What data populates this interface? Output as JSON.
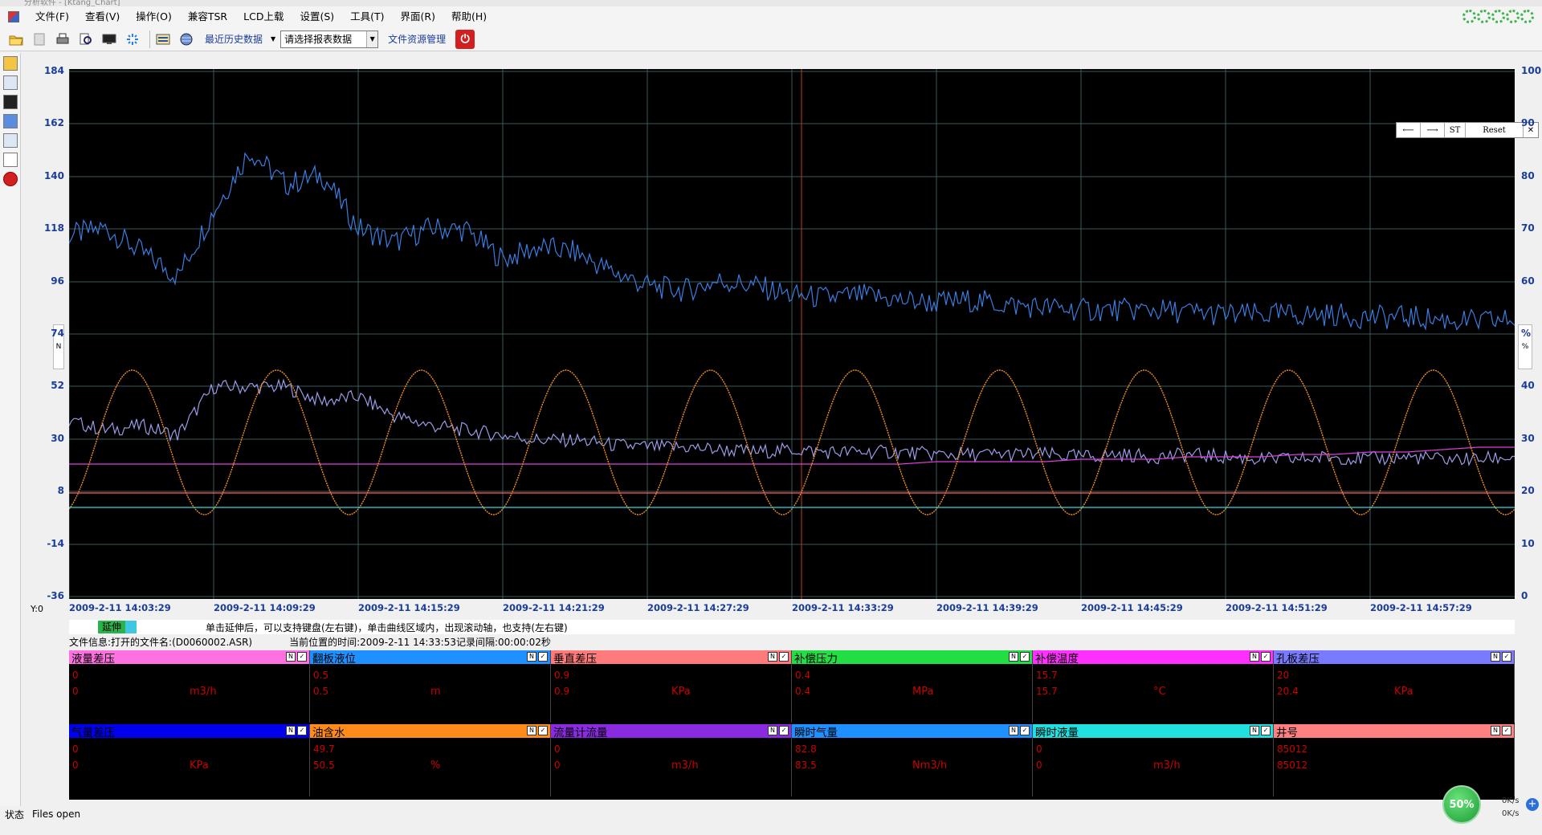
{
  "window": {
    "title": "分析软件 - [Ktang_Chart]"
  },
  "menu": [
    "文件(F)",
    "查看(V)",
    "操作(O)",
    "兼容TSR",
    "LCD上载",
    "设置(S)",
    "工具(T)",
    "界面(R)",
    "帮助(H)"
  ],
  "toolbar": {
    "recent_history": "最近历史数据",
    "report_select": "请选择报表数据",
    "file_manager": "文件资源管理"
  },
  "nav": {
    "back": "⟵",
    "forward": "⟶",
    "st": "ST",
    "reset": "Reset",
    "close": "✕"
  },
  "chart_data": {
    "type": "line",
    "left_axis": {
      "ticks": [
        "184",
        "162",
        "140",
        "118",
        "96",
        "74",
        "52",
        "30",
        "8",
        "-14",
        "-36"
      ],
      "unit": "N",
      "ylim": [
        -36,
        184
      ]
    },
    "right_axis": {
      "ticks": [
        "100",
        "90",
        "80",
        "70",
        "60",
        "%",
        "40",
        "30",
        "20",
        "10",
        "0"
      ],
      "unit": "%"
    },
    "x_ticks": [
      "2009-2-11 14:03:29",
      "2009-2-11 14:09:29",
      "2009-2-11 14:15:29",
      "2009-2-11 14:21:29",
      "2009-2-11 14:27:29",
      "2009-2-11 14:33:29",
      "2009-2-11 14:39:29",
      "2009-2-11 14:45:29",
      "2009-2-11 14:51:29",
      "2009-2-11 14:57:29"
    ],
    "y0_label": "Y:0",
    "cursor_time": "2009-2-11 14:33:53",
    "series": [
      {
        "color": "#3a7de0",
        "values": [
          115,
          118,
          108,
          98,
          125,
          150,
          136,
          140,
          118,
          112,
          118,
          117,
          105,
          110,
          108,
          100,
          94,
          92,
          96,
          94,
          90,
          89,
          90,
          88,
          87,
          88,
          86,
          85,
          84,
          84,
          84,
          83,
          82,
          82,
          82,
          82,
          81,
          81,
          80,
          79,
          80
        ]
      },
      {
        "color": "#9b9be8",
        "values": [
          38,
          34,
          36,
          32,
          52,
          52,
          52,
          46,
          48,
          40,
          36,
          34,
          32,
          30,
          30,
          28,
          27,
          27,
          26,
          25,
          26,
          25,
          25,
          25,
          24,
          24,
          24,
          24,
          23,
          24,
          23,
          24,
          23,
          22,
          22,
          23,
          22,
          23,
          22,
          22,
          23
        ]
      },
      {
        "color": "#e040e0",
        "values": [
          20,
          20,
          20,
          20,
          20,
          20,
          20,
          20,
          20,
          20,
          20,
          20,
          20,
          20,
          20,
          20,
          20,
          20,
          20,
          20,
          20,
          20,
          20,
          20,
          21,
          21,
          21,
          21,
          22,
          22,
          22,
          23,
          23,
          23,
          24,
          24,
          25,
          25,
          26,
          27,
          27
        ]
      },
      {
        "color": "#f08c2a",
        "amplitude": 30,
        "offset": 29,
        "cycles": 10
      },
      {
        "color": "#35d6e0",
        "values": [
          2,
          2,
          2,
          2,
          2,
          2,
          2,
          2,
          2,
          2,
          2,
          2,
          2,
          2,
          2,
          2,
          2,
          2,
          2,
          2,
          2,
          2,
          2,
          2,
          2,
          2,
          2,
          2,
          2,
          2,
          2,
          2,
          2,
          2,
          2,
          2,
          2,
          2,
          2,
          2,
          2
        ]
      },
      {
        "color": "#ff6060",
        "values": [
          8,
          8,
          8,
          8,
          8,
          8,
          8,
          8,
          8,
          8,
          8,
          8,
          8,
          8,
          8,
          8,
          8,
          8,
          8,
          8,
          8,
          8,
          8,
          8,
          8,
          8,
          8,
          8,
          8,
          8,
          8,
          8,
          8,
          8,
          8,
          8,
          8,
          8,
          8,
          8,
          8
        ]
      }
    ]
  },
  "hint": {
    "stretch": "延伸",
    "text": "单击延伸后，可以支持键盘(左右键)，单击曲线区域内，出现滚动轴，也支持(左右键)"
  },
  "fileinfo": {
    "label": "文件信息:打开的文件名:(D0060002.ASR)",
    "current": "当前位置的时间:2009-2-11 14:33:53记录间隔:00:00:02秒"
  },
  "params": [
    {
      "name": "液量差压",
      "color": "#ff70e0",
      "v1": "0",
      "v2": "0",
      "unit": "m3/h"
    },
    {
      "name": "翻板液位",
      "color": "#1e90ff",
      "v1": "0.5",
      "v2": "0.5",
      "unit": "m"
    },
    {
      "name": "垂直差压",
      "color": "#ff7b7b",
      "v1": "0.9",
      "v2": "0.9",
      "unit": "KPa"
    },
    {
      "name": "补偿压力",
      "color": "#22dd44",
      "v1": "0.4",
      "v2": "0.4",
      "unit": "MPa"
    },
    {
      "name": "补偿温度",
      "color": "#ff30ff",
      "v1": "15.7",
      "v2": "15.7",
      "unit": "°C"
    },
    {
      "name": "孔板差压",
      "color": "#7a7aff",
      "v1": "20",
      "v2": "20.4",
      "unit": "KPa"
    },
    {
      "name": "气量差压",
      "color": "#0000ee",
      "v1": "0",
      "v2": "0",
      "unit": "KPa"
    },
    {
      "name": "油含水",
      "color": "#ff8c1a",
      "v1": "49.7",
      "v2": "50.5",
      "unit": "%"
    },
    {
      "name": "流量计流量",
      "color": "#8a2be2",
      "v1": "0",
      "v2": "0",
      "unit": "m3/h"
    },
    {
      "name": "瞬时气量",
      "color": "#1e90ff",
      "v1": "82.8",
      "v2": "83.5",
      "unit": "Nm3/h"
    },
    {
      "name": "瞬时液量",
      "color": "#22e0e0",
      "v1": "0",
      "v2": "0",
      "unit": "m3/h"
    },
    {
      "name": "井号",
      "color": "#ff8080",
      "v1": "85012",
      "v2": "85012",
      "unit": ""
    }
  ],
  "status": {
    "label": "状态",
    "message": "Files open"
  },
  "network": {
    "percent": "50%",
    "up": "0K/s",
    "down": "0K/s"
  }
}
